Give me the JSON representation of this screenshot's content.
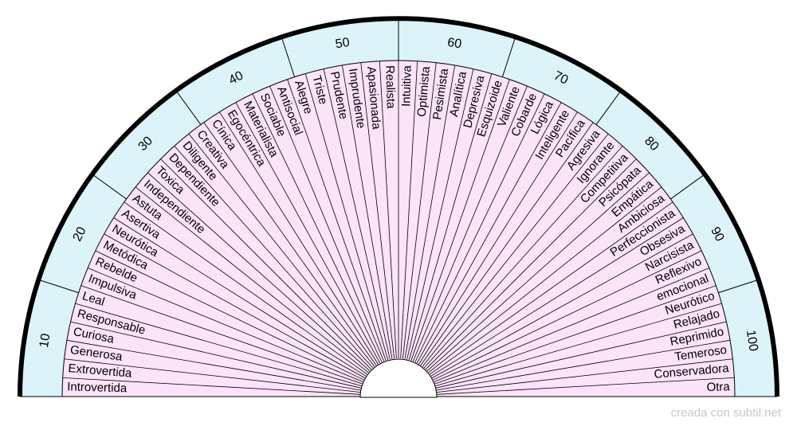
{
  "credit": "creada con subtil.net",
  "colors": {
    "outer_band": "#dcf3fa",
    "inner_fill": "#fbe3fa",
    "line": "#000000",
    "border": "#000000",
    "credit": "#c8c8c8"
  },
  "scale_labels": [
    "10",
    "20",
    "30",
    "40",
    "50",
    "60",
    "70",
    "80",
    "90",
    "100"
  ],
  "items": [
    "Introvertida",
    "Extrovertida",
    "Generosa",
    "Curiosa",
    "Responsable",
    "Leal",
    "Impulsiva",
    "Rebelde",
    "Metódica",
    "Neurótica",
    "Asertiva",
    "Astuta",
    "Independiente",
    "Toxica",
    "Dependiente",
    "Diligente",
    "Creativa",
    "Cínica",
    "Egocéntrica",
    "Materialista",
    "Sociable",
    "Antisocial",
    "Alegre",
    "Triste",
    "Prudente",
    "Imprudente",
    "Apasionada",
    "Realista",
    "Intuitiva",
    "Optimista",
    "Pesimista",
    "Analítica",
    "Depresiva",
    "Esquizoide",
    "Valiente",
    "Cobarde",
    "Lógica",
    "Inteligente",
    "Pacífica",
    "Agresiva",
    "Ignorante",
    "Competitiva",
    "Psicópata",
    "Empática",
    "Ambiciosa",
    "Perfeccionista",
    "Obsesiva",
    "Narcisista",
    "Reflexivo",
    "emocional",
    "Neurótico",
    "Relajado",
    "Reprimido",
    "Temeroso",
    "Conservadora",
    "Otra"
  ]
}
